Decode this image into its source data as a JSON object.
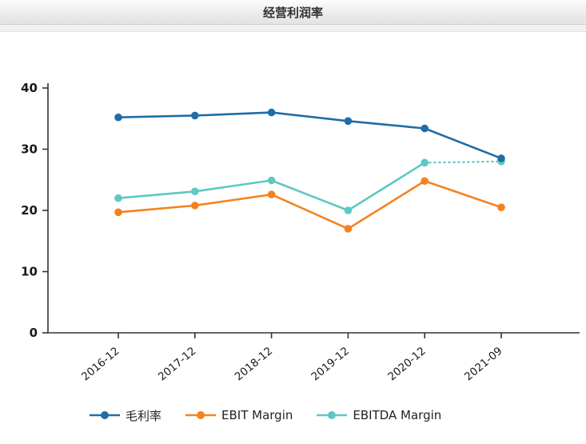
{
  "header": {
    "title": "经营利润率"
  },
  "chart_data": {
    "type": "line",
    "title": "经营利润率",
    "categories": [
      "2016-12",
      "2017-12",
      "2018-12",
      "2019-12",
      "2020-12",
      "2021-09"
    ],
    "series": [
      {
        "name": "毛利率",
        "color": "#1f6da5",
        "values": [
          35.2,
          35.5,
          36.0,
          34.6,
          33.4,
          28.5
        ]
      },
      {
        "name": "EBIT Margin",
        "color": "#f5821f",
        "values": [
          19.7,
          20.8,
          22.6,
          17.0,
          24.8,
          20.5
        ]
      },
      {
        "name": "EBITDA Margin",
        "color": "#5ec8c3",
        "values": [
          22.0,
          23.1,
          24.9,
          20.0,
          27.8,
          28.0
        ],
        "dash_from": 4
      }
    ],
    "ylim": [
      0,
      40
    ],
    "yticks": [
      0,
      10,
      20,
      30,
      40
    ],
    "xlabel": "",
    "ylabel": "",
    "grid": false,
    "legend_position": "bottom",
    "axis_color": "#333333",
    "label_color": "#1a1a1a"
  }
}
